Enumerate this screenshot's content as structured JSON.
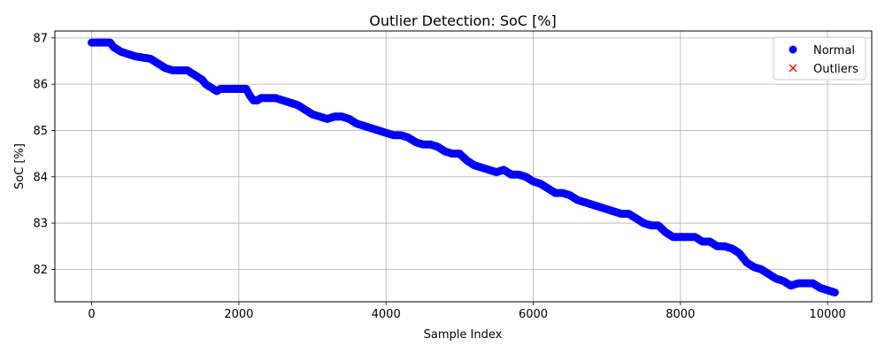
{
  "chart_data": {
    "type": "scatter",
    "title": "Outlier Detection: SoC [%]",
    "xlabel": "Sample Index",
    "ylabel": "SoC [%]",
    "xlim": [
      -500,
      10600
    ],
    "ylim": [
      81.3,
      87.15
    ],
    "x_ticks": [
      0,
      2000,
      4000,
      6000,
      8000,
      10000
    ],
    "x_tick_labels": [
      "0",
      "2000",
      "4000",
      "6000",
      "8000",
      "10000"
    ],
    "y_ticks": [
      82,
      83,
      84,
      85,
      86,
      87
    ],
    "y_tick_labels": [
      "82",
      "83",
      "84",
      "85",
      "86",
      "87"
    ],
    "grid": true,
    "legend_position": "top-right",
    "series": [
      {
        "name": "Normal",
        "marker": "circle",
        "color": "#0000ff",
        "x": [
          0,
          250,
          300,
          400,
          600,
          800,
          900,
          1000,
          1100,
          1200,
          1300,
          1400,
          1450,
          1500,
          1550,
          1600,
          1650,
          1700,
          1750,
          1800,
          2000,
          2100,
          2150,
          2200,
          2250,
          2300,
          2500,
          2600,
          2700,
          2800,
          2900,
          3000,
          3100,
          3200,
          3300,
          3400,
          3500,
          3600,
          3700,
          3800,
          3900,
          4000,
          4100,
          4200,
          4300,
          4400,
          4500,
          4600,
          4700,
          4800,
          4900,
          5000,
          5100,
          5200,
          5300,
          5400,
          5500,
          5600,
          5700,
          5800,
          5900,
          6000,
          6100,
          6200,
          6300,
          6400,
          6500,
          6600,
          6700,
          6800,
          6900,
          7000,
          7100,
          7200,
          7300,
          7400,
          7500,
          7600,
          7700,
          7800,
          7900,
          8000,
          8100,
          8200,
          8300,
          8400,
          8500,
          8600,
          8700,
          8800,
          8900,
          9000,
          9100,
          9200,
          9300,
          9400,
          9500,
          9600,
          9700,
          9800,
          9900,
          10000,
          10100
        ],
        "y": [
          86.9,
          86.9,
          86.8,
          86.7,
          86.6,
          86.55,
          86.45,
          86.35,
          86.3,
          86.3,
          86.3,
          86.2,
          86.15,
          86.1,
          86.0,
          85.95,
          85.9,
          85.85,
          85.9,
          85.9,
          85.9,
          85.9,
          85.75,
          85.65,
          85.65,
          85.7,
          85.7,
          85.65,
          85.6,
          85.55,
          85.45,
          85.35,
          85.3,
          85.25,
          85.3,
          85.3,
          85.25,
          85.15,
          85.1,
          85.05,
          85.0,
          84.95,
          84.9,
          84.9,
          84.85,
          84.75,
          84.7,
          84.7,
          84.65,
          84.55,
          84.5,
          84.5,
          84.35,
          84.25,
          84.2,
          84.15,
          84.1,
          84.15,
          84.05,
          84.05,
          84.0,
          83.9,
          83.85,
          83.75,
          83.65,
          83.65,
          83.6,
          83.5,
          83.45,
          83.4,
          83.35,
          83.3,
          83.25,
          83.2,
          83.2,
          83.1,
          83.0,
          82.95,
          82.95,
          82.8,
          82.7,
          82.7,
          82.7,
          82.7,
          82.6,
          82.6,
          82.5,
          82.5,
          82.45,
          82.35,
          82.15,
          82.05,
          82.0,
          81.9,
          81.8,
          81.75,
          81.65,
          81.7,
          81.7,
          81.7,
          81.6,
          81.55,
          81.5
        ]
      },
      {
        "name": "Outliers",
        "marker": "x",
        "color": "#ff0000",
        "x": [],
        "y": []
      }
    ]
  }
}
